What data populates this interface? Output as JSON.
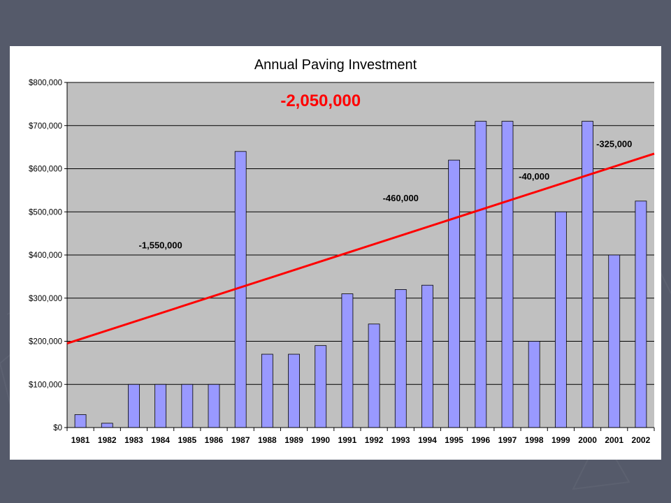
{
  "chart_data": {
    "type": "bar",
    "title": "Annual Paving Investment",
    "categories": [
      "1981",
      "1982",
      "1983",
      "1984",
      "1985",
      "1986",
      "1987",
      "1988",
      "1989",
      "1990",
      "1991",
      "1992",
      "1993",
      "1994",
      "1995",
      "1996",
      "1997",
      "1998",
      "1999",
      "2000",
      "2001",
      "2002"
    ],
    "values": [
      30000,
      10000,
      100000,
      100000,
      100000,
      100000,
      640000,
      170000,
      170000,
      190000,
      310000,
      240000,
      320000,
      330000,
      620000,
      710000,
      710000,
      200000,
      500000,
      710000,
      400000,
      525000
    ],
    "ylim": [
      0,
      800000
    ],
    "yticks": [
      0,
      100000,
      200000,
      300000,
      400000,
      500000,
      600000,
      700000,
      800000
    ],
    "ytick_labels": [
      "$0",
      "$100,000",
      "$200,000",
      "$300,000",
      "$400,000",
      "$500,000",
      "$600,000",
      "$700,000",
      "$800,000"
    ],
    "xlabel": "",
    "ylabel": "",
    "grid": true,
    "trendline": {
      "from": [
        "1981",
        195000
      ],
      "to": [
        "2002",
        635000
      ],
      "color": "#ff0000"
    },
    "annotations": [
      {
        "text": "-2,050,000",
        "x": "1990",
        "y": 745000,
        "color": "#ff0000",
        "emphasis": true
      },
      {
        "text": "-1,550,000",
        "x": "1984",
        "y": 415000,
        "color": "#000000"
      },
      {
        "text": "-460,000",
        "x": "1993",
        "y": 525000,
        "color": "#000000"
      },
      {
        "text": "-40,000",
        "x": "1998",
        "y": 575000,
        "color": "#000000"
      },
      {
        "text": "-325,000",
        "x": "2001",
        "y": 650000,
        "color": "#000000"
      }
    ],
    "colors": {
      "bar_fill": "#9999ff",
      "bar_stroke": "#000000",
      "plot_bg": "#c0c0c0",
      "outer_bg": "#ffffff",
      "gridline": "#000000",
      "slide_bg": "#555a6a"
    }
  }
}
